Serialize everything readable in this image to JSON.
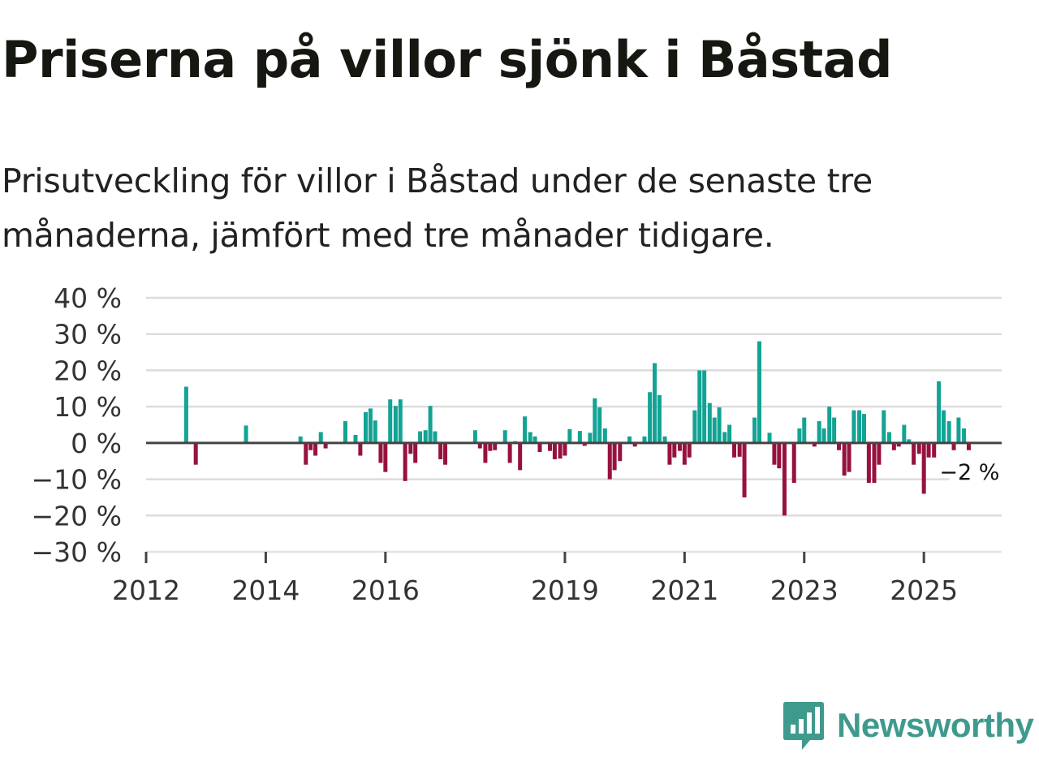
{
  "title": "Priserna på villor sjönk i Båstad",
  "subtitle": "Prisutveckling för villor i Båstad under de senaste tre månaderna, jämfört med tre månader tidigare.",
  "colors": {
    "positive": "#12a394",
    "negative": "#98113e",
    "grid": "#dcdcdc",
    "axis": "#444444",
    "brand": "#3f9a8e"
  },
  "brand": {
    "name": "Newsworthy",
    "icon": "newsworthy-logo-icon"
  },
  "chart_data": {
    "type": "bar",
    "title": "Priserna på villor sjönk i Båstad",
    "xlabel": "",
    "ylabel": "",
    "ylim": [
      -30,
      40
    ],
    "yticks": [
      40,
      30,
      20,
      10,
      0,
      -10,
      -20,
      -30
    ],
    "ytick_labels": [
      "40 %",
      "30 %",
      "20 %",
      "10 %",
      "0 %",
      "−10 %",
      "−20 %",
      "−30 %"
    ],
    "xlim": [
      2012,
      2026.3
    ],
    "xticks": [
      2012,
      2014,
      2016,
      2019,
      2021,
      2023,
      2025
    ],
    "xtick_labels": [
      "2012",
      "2014",
      "2016",
      "2019",
      "2021",
      "2023",
      "2025"
    ],
    "unit": "%",
    "grid": true,
    "last_value_label": "−2 %",
    "series": [
      {
        "name": "Prisutveckling",
        "points": [
          {
            "t": 2012.67,
            "v": 15.5
          },
          {
            "t": 2012.83,
            "v": -6
          },
          {
            "t": 2013.67,
            "v": 4.8
          },
          {
            "t": 2014.58,
            "v": 1.8
          },
          {
            "t": 2014.67,
            "v": -6
          },
          {
            "t": 2014.75,
            "v": -2
          },
          {
            "t": 2014.83,
            "v": -3.5
          },
          {
            "t": 2014.92,
            "v": 3
          },
          {
            "t": 2015.0,
            "v": -1.5
          },
          {
            "t": 2015.33,
            "v": 6
          },
          {
            "t": 2015.5,
            "v": 2.2
          },
          {
            "t": 2015.58,
            "v": -3.5
          },
          {
            "t": 2015.67,
            "v": 8.5
          },
          {
            "t": 2015.75,
            "v": 9.5
          },
          {
            "t": 2015.83,
            "v": 6.2
          },
          {
            "t": 2015.92,
            "v": -5.5
          },
          {
            "t": 2016.0,
            "v": -8
          },
          {
            "t": 2016.08,
            "v": 12
          },
          {
            "t": 2016.17,
            "v": 10.2
          },
          {
            "t": 2016.25,
            "v": 12
          },
          {
            "t": 2016.33,
            "v": -10.5
          },
          {
            "t": 2016.42,
            "v": -3
          },
          {
            "t": 2016.5,
            "v": -5.5
          },
          {
            "t": 2016.58,
            "v": 3.2
          },
          {
            "t": 2016.67,
            "v": 3.5
          },
          {
            "t": 2016.75,
            "v": 10.2
          },
          {
            "t": 2016.83,
            "v": 3.2
          },
          {
            "t": 2016.92,
            "v": -4.5
          },
          {
            "t": 2017.0,
            "v": -6
          },
          {
            "t": 2017.5,
            "v": 3.5
          },
          {
            "t": 2017.58,
            "v": -1.5
          },
          {
            "t": 2017.67,
            "v": -5.5
          },
          {
            "t": 2017.75,
            "v": -2.2
          },
          {
            "t": 2017.83,
            "v": -2
          },
          {
            "t": 2018.0,
            "v": 3.5
          },
          {
            "t": 2018.08,
            "v": -5.5
          },
          {
            "t": 2018.17,
            "v": 0.5
          },
          {
            "t": 2018.25,
            "v": -7.5
          },
          {
            "t": 2018.33,
            "v": 7.3
          },
          {
            "t": 2018.42,
            "v": 3
          },
          {
            "t": 2018.5,
            "v": 1.8
          },
          {
            "t": 2018.58,
            "v": -2.5
          },
          {
            "t": 2018.75,
            "v": -2.2
          },
          {
            "t": 2018.83,
            "v": -4.5
          },
          {
            "t": 2018.92,
            "v": -4.3
          },
          {
            "t": 2019.0,
            "v": -3.5
          },
          {
            "t": 2019.08,
            "v": 3.8
          },
          {
            "t": 2019.25,
            "v": 3.3
          },
          {
            "t": 2019.33,
            "v": -0.8
          },
          {
            "t": 2019.42,
            "v": 2.8
          },
          {
            "t": 2019.5,
            "v": 12.3
          },
          {
            "t": 2019.58,
            "v": 9.8
          },
          {
            "t": 2019.67,
            "v": 4
          },
          {
            "t": 2019.75,
            "v": -10
          },
          {
            "t": 2019.83,
            "v": -7.5
          },
          {
            "t": 2019.92,
            "v": -5
          },
          {
            "t": 2020.08,
            "v": 1.8
          },
          {
            "t": 2020.17,
            "v": -1
          },
          {
            "t": 2020.33,
            "v": 1.8
          },
          {
            "t": 2020.42,
            "v": 14
          },
          {
            "t": 2020.5,
            "v": 22
          },
          {
            "t": 2020.58,
            "v": 13.2
          },
          {
            "t": 2020.67,
            "v": 1.8
          },
          {
            "t": 2020.75,
            "v": -6
          },
          {
            "t": 2020.83,
            "v": -4
          },
          {
            "t": 2020.92,
            "v": -2.2
          },
          {
            "t": 2021.0,
            "v": -6
          },
          {
            "t": 2021.08,
            "v": -4
          },
          {
            "t": 2021.17,
            "v": 9
          },
          {
            "t": 2021.25,
            "v": 20
          },
          {
            "t": 2021.33,
            "v": 20
          },
          {
            "t": 2021.42,
            "v": 11
          },
          {
            "t": 2021.5,
            "v": 7
          },
          {
            "t": 2021.58,
            "v": 9.8
          },
          {
            "t": 2021.67,
            "v": 3
          },
          {
            "t": 2021.75,
            "v": 5
          },
          {
            "t": 2021.83,
            "v": -4
          },
          {
            "t": 2021.92,
            "v": -3.8
          },
          {
            "t": 2022.0,
            "v": -15
          },
          {
            "t": 2022.17,
            "v": 7
          },
          {
            "t": 2022.25,
            "v": 28
          },
          {
            "t": 2022.42,
            "v": 2.8
          },
          {
            "t": 2022.5,
            "v": -6
          },
          {
            "t": 2022.58,
            "v": -7
          },
          {
            "t": 2022.67,
            "v": -20
          },
          {
            "t": 2022.83,
            "v": -11
          },
          {
            "t": 2022.92,
            "v": 4
          },
          {
            "t": 2023.0,
            "v": 7
          },
          {
            "t": 2023.17,
            "v": -1
          },
          {
            "t": 2023.25,
            "v": 6
          },
          {
            "t": 2023.33,
            "v": 4
          },
          {
            "t": 2023.42,
            "v": 10
          },
          {
            "t": 2023.5,
            "v": 7
          },
          {
            "t": 2023.58,
            "v": -2
          },
          {
            "t": 2023.67,
            "v": -9
          },
          {
            "t": 2023.75,
            "v": -8
          },
          {
            "t": 2023.83,
            "v": 9
          },
          {
            "t": 2023.92,
            "v": 9
          },
          {
            "t": 2024.0,
            "v": 8
          },
          {
            "t": 2024.08,
            "v": -11
          },
          {
            "t": 2024.17,
            "v": -11
          },
          {
            "t": 2024.25,
            "v": -6
          },
          {
            "t": 2024.33,
            "v": 9
          },
          {
            "t": 2024.42,
            "v": 3
          },
          {
            "t": 2024.5,
            "v": -2
          },
          {
            "t": 2024.58,
            "v": -1
          },
          {
            "t": 2024.67,
            "v": 5
          },
          {
            "t": 2024.75,
            "v": 1
          },
          {
            "t": 2024.83,
            "v": -6
          },
          {
            "t": 2024.92,
            "v": -3
          },
          {
            "t": 2025.0,
            "v": -14
          },
          {
            "t": 2025.08,
            "v": -4
          },
          {
            "t": 2025.17,
            "v": -4
          },
          {
            "t": 2025.25,
            "v": 17
          },
          {
            "t": 2025.33,
            "v": 9
          },
          {
            "t": 2025.42,
            "v": 6
          },
          {
            "t": 2025.5,
            "v": -2
          },
          {
            "t": 2025.58,
            "v": 7
          },
          {
            "t": 2025.67,
            "v": 4
          },
          {
            "t": 2025.75,
            "v": -2
          }
        ]
      }
    ]
  }
}
